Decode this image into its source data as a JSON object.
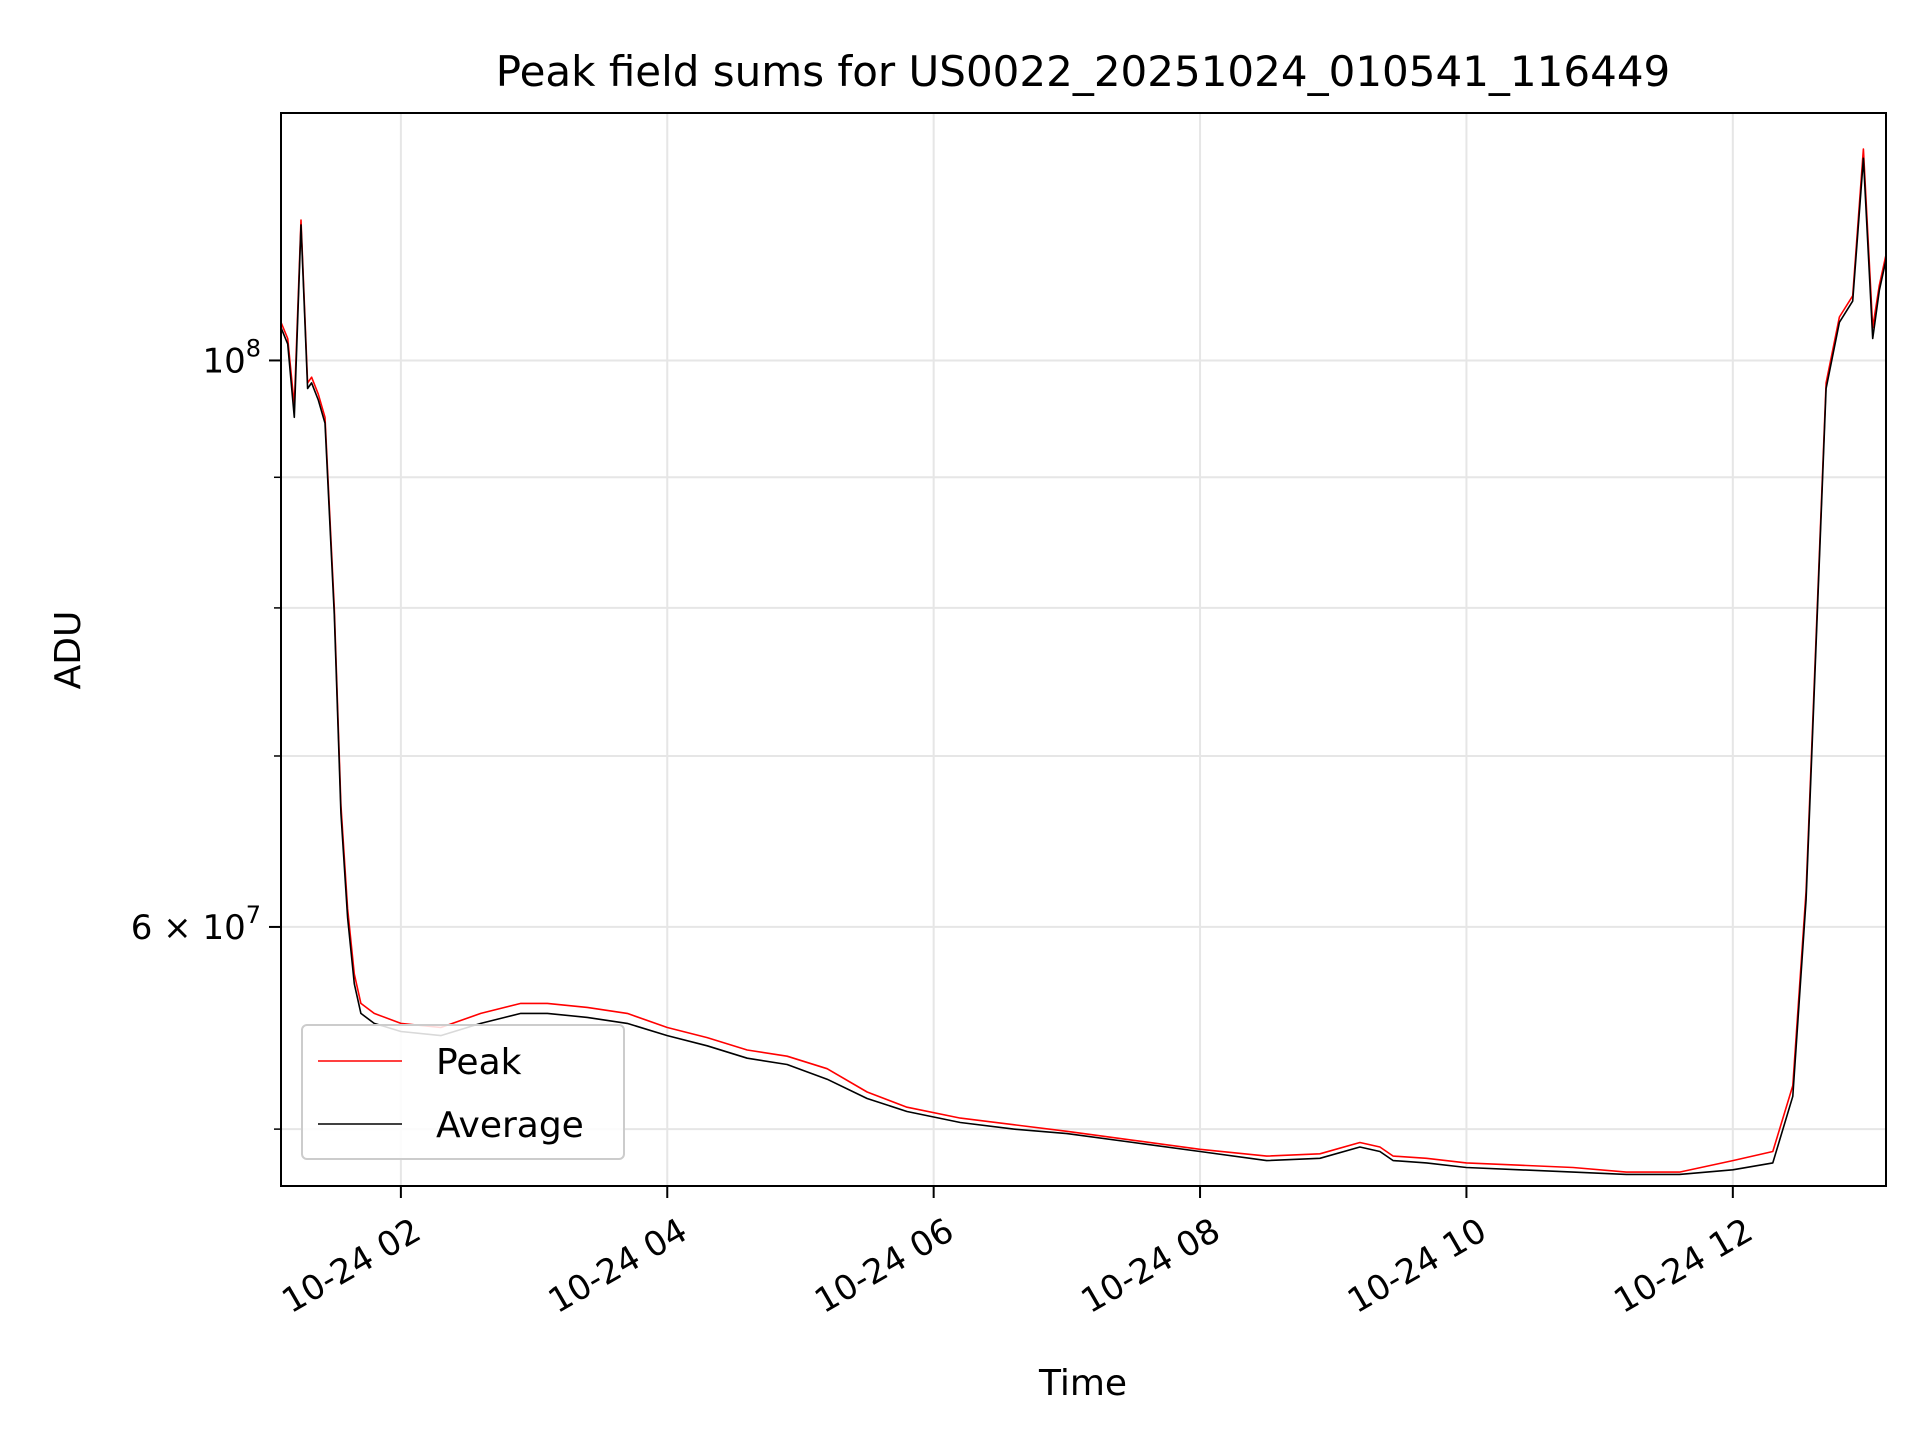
{
  "chart_data": {
    "type": "line",
    "title": "Peak field sums for US0022_20251024_010541_116449",
    "xlabel": "Time",
    "ylabel": "ADU",
    "yscale": "log",
    "grid": true,
    "legend_position": "lower-left",
    "xlim_hours": [
      1.1,
      13.15
    ],
    "ylim": [
      47500000,
      125000000
    ],
    "x_ticks": [
      {
        "hour": 2,
        "label": "10-24 02"
      },
      {
        "hour": 4,
        "label": "10-24 04"
      },
      {
        "hour": 6,
        "label": "10-24 06"
      },
      {
        "hour": 8,
        "label": "10-24 08"
      },
      {
        "hour": 10,
        "label": "10-24 10"
      },
      {
        "hour": 12,
        "label": "10-24 12"
      }
    ],
    "y_major_ticks": [
      {
        "value": 100000000,
        "base": "10",
        "exp": "8"
      },
      {
        "value": 60000000,
        "base": "6 × 10",
        "exp": "7"
      }
    ],
    "y_minor_ticks": [
      50000000,
      70000000,
      80000000,
      90000000
    ],
    "series": [
      {
        "name": "Peak",
        "color": "#ff0000",
        "x_hours": [
          1.1,
          1.15,
          1.2,
          1.25,
          1.3,
          1.33,
          1.38,
          1.43,
          1.5,
          1.55,
          1.6,
          1.65,
          1.7,
          1.8,
          2.0,
          2.3,
          2.6,
          2.9,
          3.1,
          3.4,
          3.7,
          4.0,
          4.3,
          4.6,
          4.9,
          5.2,
          5.5,
          5.8,
          6.2,
          6.6,
          7.0,
          7.5,
          8.0,
          8.5,
          8.9,
          9.2,
          9.35,
          9.45,
          9.7,
          10.0,
          10.4,
          10.8,
          11.2,
          11.6,
          12.0,
          12.3,
          12.45,
          12.55,
          12.7,
          12.8,
          12.9,
          12.98,
          13.05,
          13.1,
          13.15
        ],
        "values": [
          103500000,
          102000000,
          96000000,
          113500000,
          98000000,
          98500000,
          97000000,
          95000000,
          80000000,
          67000000,
          61000000,
          57500000,
          56000000,
          55500000,
          55000000,
          54800000,
          55500000,
          56000000,
          56000000,
          55800000,
          55500000,
          54800000,
          54300000,
          53700000,
          53400000,
          52800000,
          51700000,
          51000000,
          50500000,
          50200000,
          49900000,
          49500000,
          49100000,
          48800000,
          48900000,
          49400000,
          49200000,
          48800000,
          48700000,
          48500000,
          48400000,
          48300000,
          48100000,
          48100000,
          48600000,
          49000000,
          52000000,
          62000000,
          98000000,
          104000000,
          106000000,
          121000000,
          103000000,
          107000000,
          110000000
        ]
      },
      {
        "name": "Average",
        "color": "#000000",
        "x_hours": [
          1.1,
          1.15,
          1.2,
          1.25,
          1.3,
          1.33,
          1.38,
          1.43,
          1.5,
          1.55,
          1.6,
          1.65,
          1.7,
          1.8,
          2.0,
          2.3,
          2.6,
          2.9,
          3.1,
          3.4,
          3.7,
          4.0,
          4.3,
          4.6,
          4.9,
          5.2,
          5.5,
          5.8,
          6.2,
          6.6,
          7.0,
          7.5,
          8.0,
          8.5,
          8.9,
          9.2,
          9.35,
          9.45,
          9.7,
          10.0,
          10.4,
          10.8,
          11.2,
          11.6,
          12.0,
          12.3,
          12.45,
          12.55,
          12.7,
          12.8,
          12.9,
          12.98,
          13.05,
          13.1,
          13.15
        ],
        "values": [
          103000000,
          101500000,
          95000000,
          113000000,
          97500000,
          98000000,
          96500000,
          94500000,
          79500000,
          66500000,
          60500000,
          57000000,
          55500000,
          55000000,
          54600000,
          54400000,
          55000000,
          55500000,
          55500000,
          55300000,
          55000000,
          54400000,
          53900000,
          53300000,
          53000000,
          52300000,
          51400000,
          50800000,
          50300000,
          50000000,
          49800000,
          49400000,
          49000000,
          48600000,
          48700000,
          49200000,
          49000000,
          48600000,
          48500000,
          48300000,
          48200000,
          48100000,
          48000000,
          48000000,
          48200000,
          48500000,
          51500000,
          61500000,
          97500000,
          103500000,
          105500000,
          120000000,
          102000000,
          106500000,
          109500000
        ]
      }
    ]
  }
}
